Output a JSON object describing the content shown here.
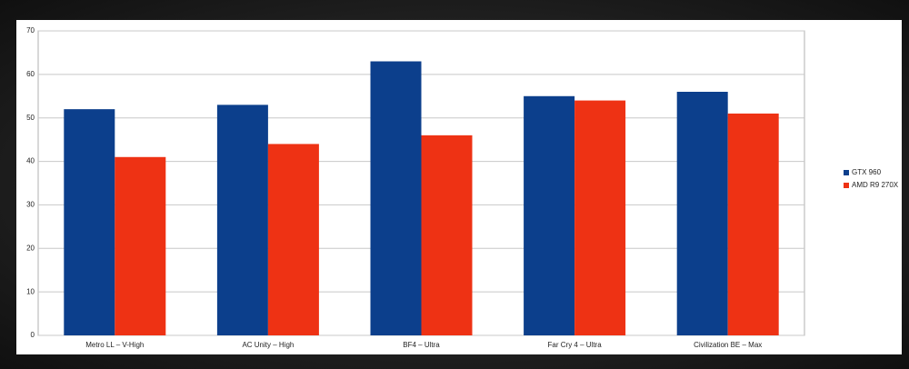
{
  "chart_data": {
    "type": "bar",
    "categories": [
      "Metro LL – V-High",
      "AC Unity – High",
      "BF4 – Ultra",
      "Far Cry 4 – Ultra",
      "Civilization BE – Max"
    ],
    "series": [
      {
        "name": "GTX 960",
        "color": "#0c3f8c",
        "values": [
          52,
          53,
          63,
          55,
          56
        ]
      },
      {
        "name": "AMD R9 270X",
        "color": "#ee3214",
        "values": [
          41,
          44,
          46,
          54,
          51
        ]
      }
    ],
    "ylim": [
      0,
      70
    ],
    "yticks": [
      0,
      10,
      20,
      30,
      40,
      50,
      60,
      70
    ],
    "grid": true,
    "legend": "right"
  }
}
